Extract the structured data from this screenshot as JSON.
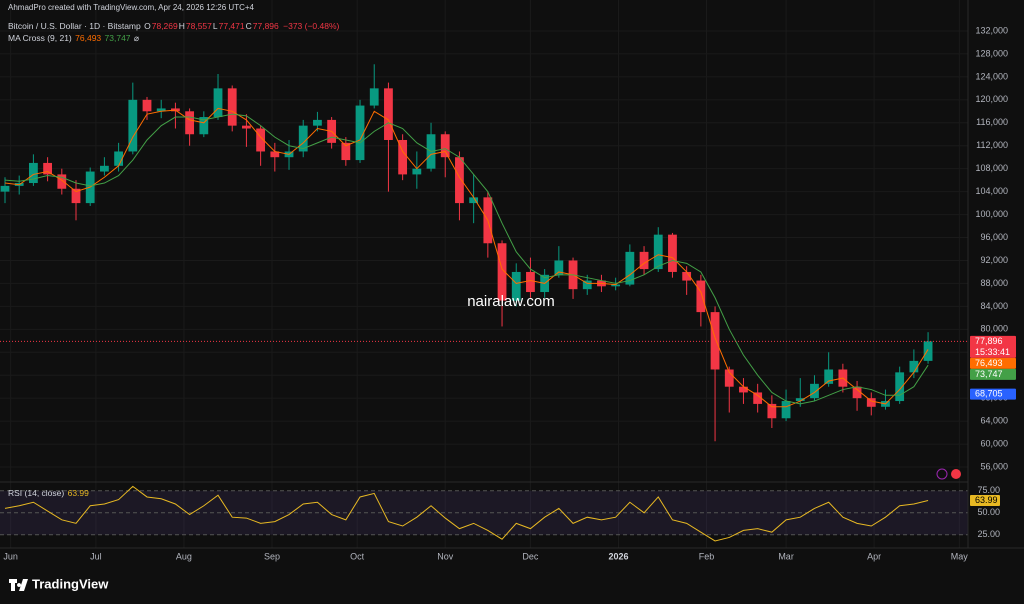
{
  "header": {
    "credit": "AhmadPro created with TradingView.com, Apr 24, 2026 12:26 UTC+4",
    "ohlc": [
      {
        "key": "O",
        "value": "78,269"
      },
      {
        "key": "H",
        "value": "78,557"
      },
      {
        "key": "L",
        "value": "77,471"
      },
      {
        "key": "C",
        "value": "77,896"
      }
    ],
    "change": "−373 (−0.48%)"
  },
  "watermark": "nairalaw.com",
  "logo": "TradingView",
  "chart_data": [
    {
      "type": "candlestick",
      "title": "Bitcoin / U.S. Dollar · 1D · Bitstamp",
      "x": [
        0,
        5,
        10,
        15,
        20,
        25,
        30,
        35,
        40,
        45,
        50,
        55,
        60,
        65,
        70,
        75,
        80,
        85,
        90,
        95,
        100,
        105,
        110,
        115,
        120,
        125,
        130,
        135,
        140,
        145,
        150,
        155,
        160,
        165,
        170,
        175,
        180,
        185,
        190,
        195,
        200,
        205,
        210,
        215,
        220,
        225,
        230,
        235,
        240,
        245,
        250,
        255,
        260,
        265,
        270,
        275,
        280,
        285,
        290,
        295,
        300,
        305,
        310,
        315,
        320,
        325
      ],
      "open": [
        104000,
        105000,
        105500,
        109000,
        107000,
        104500,
        102000,
        107500,
        108500,
        111000,
        120000,
        118000,
        118500,
        118000,
        114000,
        117000,
        122000,
        115500,
        115000,
        111000,
        110000,
        111000,
        115500,
        116500,
        112500,
        109500,
        119000,
        122000,
        113000,
        107000,
        108000,
        114000,
        110000,
        102000,
        103000,
        95000,
        85000,
        90000,
        86500,
        89500,
        92000,
        87000,
        88500,
        87500,
        87800,
        93500,
        90500,
        96500,
        90000,
        88500,
        83000,
        73000,
        70000,
        69000,
        67000,
        64500,
        67500,
        68000,
        70500,
        73000,
        70000,
        68000,
        66500,
        67500,
        72500,
        74500
      ],
      "high": [
        106500,
        106800,
        110500,
        110000,
        108000,
        106000,
        108200,
        110000,
        112500,
        123000,
        120500,
        120000,
        119500,
        118500,
        118000,
        124500,
        122500,
        117500,
        115500,
        112500,
        113000,
        116500,
        117900,
        117000,
        113500,
        120000,
        126200,
        123000,
        114000,
        111000,
        116000,
        114500,
        111000,
        107000,
        104000,
        95500,
        91500,
        92500,
        90500,
        94500,
        92500,
        89500,
        89500,
        89000,
        94800,
        94500,
        97800,
        96800,
        91000,
        89500,
        84000,
        73500,
        71500,
        70500,
        68500,
        69500,
        71500,
        72000,
        76000,
        74000,
        71000,
        69000,
        69500,
        73500,
        76500,
        79500
      ],
      "low": [
        102000,
        103500,
        105000,
        105800,
        103500,
        99000,
        101500,
        106800,
        107500,
        110500,
        116500,
        116800,
        115000,
        112000,
        113500,
        116500,
        114500,
        111800,
        108500,
        107500,
        107800,
        110000,
        114500,
        111500,
        108500,
        109000,
        118500,
        104000,
        106000,
        104500,
        107500,
        106500,
        99000,
        98500,
        92500,
        80500,
        84000,
        85500,
        85500,
        89000,
        85300,
        86000,
        86500,
        86800,
        87500,
        89500,
        90000,
        89000,
        86000,
        80500,
        60500,
        65500,
        67000,
        65500,
        62800,
        64000,
        66500,
        67500,
        70000,
        69000,
        65800,
        65000,
        66000,
        67000,
        71500,
        74000
      ],
      "close": [
        105000,
        105500,
        109000,
        107000,
        104500,
        102000,
        107500,
        108500,
        111000,
        120000,
        118000,
        118500,
        118000,
        114000,
        117000,
        122000,
        115500,
        115000,
        111000,
        110000,
        111000,
        115500,
        116500,
        112500,
        109500,
        119000,
        122000,
        113000,
        107000,
        108000,
        114000,
        110000,
        102000,
        103000,
        95000,
        85000,
        90000,
        86500,
        89500,
        92000,
        87000,
        88500,
        87500,
        87800,
        93500,
        90500,
        96500,
        90000,
        88500,
        83000,
        73000,
        70000,
        69000,
        67000,
        64500,
        67500,
        68000,
        70500,
        73000,
        70000,
        68000,
        66500,
        67500,
        72500,
        74500,
        77900
      ],
      "up_color": "#089981",
      "down_color": "#f23645",
      "xlim": [
        0,
        338
      ],
      "xticks": [
        {
          "value": 2,
          "label": "Jun"
        },
        {
          "value": 32,
          "label": "Jul"
        },
        {
          "value": 63,
          "label": "Aug"
        },
        {
          "value": 94,
          "label": "Sep"
        },
        {
          "value": 124,
          "label": "Oct"
        },
        {
          "value": 155,
          "label": "Nov"
        },
        {
          "value": 185,
          "label": "Dec"
        },
        {
          "value": 216,
          "label": "2026"
        },
        {
          "value": 247,
          "label": "Feb"
        },
        {
          "value": 275,
          "label": "Mar"
        },
        {
          "value": 306,
          "label": "Apr"
        },
        {
          "value": 336,
          "label": "May"
        }
      ],
      "ylim": [
        54000,
        134000
      ],
      "yticks": [
        {
          "value": 56000,
          "label": "56,000"
        },
        {
          "value": 60000,
          "label": "60,000"
        },
        {
          "value": 64000,
          "label": "64,000"
        },
        {
          "value": 68000,
          "label": "68,000"
        },
        {
          "value": 72000,
          "label": "72,000"
        },
        {
          "value": 76000,
          "label": "76,000"
        },
        {
          "value": 80000,
          "label": "80,000"
        },
        {
          "value": 84000,
          "label": "84,000"
        },
        {
          "value": 88000,
          "label": "88,000"
        },
        {
          "value": 92000,
          "label": "92,000"
        },
        {
          "value": 96000,
          "label": "96,000"
        },
        {
          "value": 100000,
          "label": "100,000"
        },
        {
          "value": 104000,
          "label": "104,000"
        },
        {
          "value": 108000,
          "label": "108,000"
        },
        {
          "value": 112000,
          "label": "112,000"
        },
        {
          "value": 116000,
          "label": "116,000"
        },
        {
          "value": 120000,
          "label": "120,000"
        },
        {
          "value": 124000,
          "label": "124,000"
        },
        {
          "value": 128000,
          "label": "128,000"
        },
        {
          "value": 132000,
          "label": "132,000"
        }
      ],
      "grid": true,
      "indicator": {
        "name": "MA Cross (9, 21)",
        "symbol": "⌀",
        "lines": [
          {
            "color": "#ff6d00",
            "last_label": "76,493",
            "values": [
              105500,
              105200,
              107000,
              107500,
              106000,
              104000,
              104800,
              106500,
              108500,
              113500,
              117500,
              118000,
              118200,
              116500,
              116000,
              118500,
              118000,
              116500,
              113500,
              111000,
              110500,
              112500,
              115000,
              114500,
              112000,
              113000,
              118000,
              116500,
              111000,
              108000,
              110500,
              111000,
              106500,
              103000,
              99000,
              90500,
              88000,
              88500,
              88000,
              90000,
              89500,
              88000,
              88000,
              87800,
              89500,
              91500,
              93000,
              92500,
              90000,
              86500,
              78500,
              72500,
              70000,
              68500,
              66500,
              66500,
              67500,
              69000,
              71000,
              71500,
              69500,
              67500,
              67000,
              69500,
              72500,
              76493
            ]
          },
          {
            "color": "#43a047",
            "last_label": "73,747",
            "values": [
              106000,
              105800,
              106200,
              106800,
              106500,
              105500,
              105000,
              105500,
              106800,
              109500,
              113000,
              115500,
              117000,
              117000,
              116500,
              117000,
              117500,
              117200,
              115500,
              113500,
              112000,
              111500,
              112500,
              113500,
              113000,
              112500,
              114500,
              116000,
              115000,
              112500,
              111000,
              111500,
              110000,
              107000,
              104000,
              98500,
              93500,
              90500,
              89000,
              89500,
              89500,
              89000,
              88500,
              88000,
              88500,
              89500,
              91000,
              92000,
              91500,
              90000,
              85500,
              80000,
              75500,
              72000,
              69000,
              67500,
              67000,
              67500,
              68500,
              69500,
              70000,
              69500,
              68500,
              68500,
              70000,
              73747
            ]
          }
        ]
      },
      "last_price": {
        "value": 77896,
        "label": "77,896",
        "countdown": "15:33:41",
        "color": "#f23645"
      },
      "alert": {
        "value": 68705,
        "label": "68,705",
        "color": "#2962ff"
      }
    },
    {
      "type": "line",
      "title": "RSI (14, close)",
      "color": "#e8b923",
      "values": [
        55,
        58,
        62,
        52,
        42,
        38,
        58,
        60,
        65,
        80,
        68,
        66,
        60,
        48,
        58,
        70,
        45,
        44,
        38,
        40,
        48,
        60,
        62,
        48,
        42,
        68,
        72,
        40,
        35,
        45,
        58,
        44,
        32,
        38,
        30,
        20,
        38,
        32,
        45,
        55,
        38,
        45,
        42,
        45,
        62,
        50,
        68,
        42,
        38,
        28,
        18,
        22,
        30,
        32,
        28,
        42,
        45,
        55,
        62,
        45,
        38,
        35,
        45,
        58,
        60,
        63.99
      ],
      "ylim": [
        10,
        85
      ],
      "yticks": [
        {
          "value": 25,
          "label": "25.00"
        },
        {
          "value": 50,
          "label": "50.00"
        },
        {
          "value": 75,
          "label": "75.00"
        }
      ]
    }
  ]
}
